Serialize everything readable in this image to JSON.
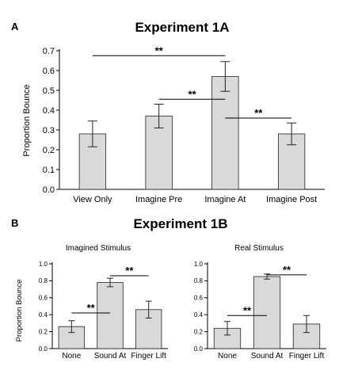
{
  "chart_data": [
    {
      "panel_label": "A",
      "type": "bar",
      "title": "Experiment 1A",
      "xlabel": "",
      "ylabel": "Proportion Bounce",
      "ylim": [
        0,
        0.7
      ],
      "yticks": [
        "0.0",
        "0.1",
        "0.2",
        "0.3",
        "0.4",
        "0.5",
        "0.6",
        "0.7"
      ],
      "yticks_values": [
        0,
        0.1,
        0.2,
        0.3,
        0.4,
        0.5,
        0.6,
        0.7
      ],
      "categories": [
        "View Only",
        "Imagine Pre",
        "Imagine At",
        "Imagine Post"
      ],
      "values": [
        0.28,
        0.37,
        0.57,
        0.28
      ],
      "error": [
        0.065,
        0.06,
        0.075,
        0.055
      ],
      "grid": false,
      "bar_color": "#d9d9d9",
      "significance": [
        {
          "from": 0,
          "to": 2,
          "y": 0.675,
          "label": "**"
        },
        {
          "from": 1,
          "to": 2,
          "y": 0.455,
          "label": "**"
        },
        {
          "from": 2,
          "to": 3,
          "y": 0.36,
          "label": "**"
        }
      ]
    },
    {
      "panel_label": "B",
      "figure_title": "Experiment 1B",
      "type": "bar",
      "title": "Imagined Stimulus",
      "xlabel": "",
      "ylabel": "Proportion Bounce",
      "ylim": [
        0,
        1.0
      ],
      "yticks": [
        "0.0",
        "0.2",
        "0.4",
        "0.6",
        "0.8",
        "1.0"
      ],
      "yticks_values": [
        0,
        0.2,
        0.4,
        0.6,
        0.8,
        1.0
      ],
      "categories": [
        "None",
        "Sound At",
        "Finger Lift"
      ],
      "values": [
        0.26,
        0.78,
        0.46
      ],
      "error": [
        0.07,
        0.05,
        0.1
      ],
      "grid": false,
      "bar_color": "#d9d9d9",
      "significance": [
        {
          "from": 0,
          "to": 1,
          "y": 0.42,
          "label": "**"
        },
        {
          "from": 1,
          "to": 2,
          "y": 0.86,
          "label": "**"
        }
      ]
    },
    {
      "type": "bar",
      "title": "Real Stimulus",
      "xlabel": "",
      "ylabel": "",
      "ylim": [
        0,
        1.0
      ],
      "yticks": [
        "0.0",
        "0.2",
        "0.4",
        "0.6",
        "0.8",
        "1.0"
      ],
      "yticks_values": [
        0,
        0.2,
        0.4,
        0.6,
        0.8,
        1.0
      ],
      "categories": [
        "None",
        "Sound At",
        "Finger Lift"
      ],
      "values": [
        0.24,
        0.85,
        0.29
      ],
      "error": [
        0.08,
        0.03,
        0.1
      ],
      "grid": false,
      "bar_color": "#d9d9d9",
      "significance": [
        {
          "from": 0,
          "to": 1,
          "y": 0.39,
          "label": "**"
        },
        {
          "from": 1,
          "to": 2,
          "y": 0.87,
          "label": "**"
        }
      ]
    }
  ]
}
